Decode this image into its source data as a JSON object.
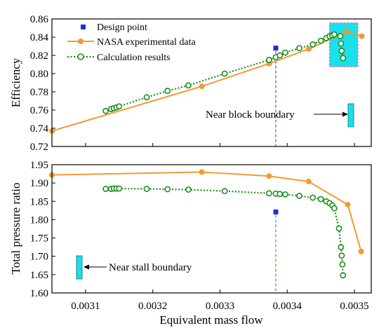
{
  "chart_data": {
    "type": "line",
    "xlabel": "Equivalent mass flow",
    "xlim": [
      0.00305,
      0.003525
    ],
    "x_ticks": [
      "0.0031",
      "0.0032",
      "0.0033",
      "0.0034",
      "0.0035"
    ],
    "x_tick_values": [
      0.0031,
      0.0032,
      0.0033,
      0.0034,
      0.0035
    ],
    "colors": {
      "nasa": "#f39a2f",
      "calc": "#1a8f1a",
      "design": "#1f2fd6",
      "marker_box": "#19e0ea",
      "highlight_border": "#e86ad0"
    },
    "panels": [
      {
        "id": "efficiency",
        "ylabel": "Efficiency",
        "ylim": [
          0.72,
          0.86
        ],
        "y_ticks": [
          "0.72",
          "0.74",
          "0.76",
          "0.78",
          "0.80",
          "0.82",
          "0.84",
          "0.86"
        ],
        "y_tick_values": [
          0.72,
          0.74,
          0.76,
          0.78,
          0.8,
          0.82,
          0.84,
          0.86
        ],
        "legend": {
          "placement": "top-left",
          "entries": [
            "Design point",
            "NASA experimental data",
            "Calculation results"
          ]
        },
        "annotation": "Near block boundary",
        "highlight_region": {
          "x": [
            0.003463,
            0.003505
          ],
          "y": [
            0.8075,
            0.8555
          ]
        },
        "series": [
          {
            "name": "NASA experimental data",
            "x": [
              0.00305,
              0.003273,
              0.003373,
              0.003432,
              0.003488,
              0.003511
            ],
            "y": [
              0.737,
              0.786,
              0.811,
              0.827,
              0.846,
              0.841
            ]
          },
          {
            "name": "Calculation results",
            "x": [
              0.00313,
              0.003138,
              0.003142,
              0.003146,
              0.00315,
              0.003191,
              0.003222,
              0.003253,
              0.003307,
              0.003373,
              0.003383,
              0.003389,
              0.003397,
              0.003418,
              0.003438,
              0.00345,
              0.003458,
              0.003463,
              0.003467,
              0.00347,
              0.003479,
              0.00348,
              0.003481,
              0.003483
            ],
            "y": [
              0.759,
              0.761,
              0.762,
              0.763,
              0.764,
              0.774,
              0.781,
              0.787,
              0.8,
              0.815,
              0.818,
              0.82,
              0.823,
              0.828,
              0.832,
              0.836,
              0.839,
              0.841,
              0.842,
              0.843,
              0.841,
              0.833,
              0.825,
              0.817
            ]
          },
          {
            "name": "Design point",
            "x": [
              0.003383
            ],
            "y": [
              0.828
            ]
          }
        ]
      },
      {
        "id": "pressure",
        "ylabel": "Total pressure ratio",
        "ylim": [
          1.6,
          1.95
        ],
        "y_ticks": [
          "1.60",
          "1.65",
          "1.70",
          "1.75",
          "1.80",
          "1.85",
          "1.90",
          "1.95"
        ],
        "y_tick_values": [
          1.6,
          1.65,
          1.7,
          1.75,
          1.8,
          1.85,
          1.9,
          1.95
        ],
        "annotation": "Near stall boundary",
        "series": [
          {
            "name": "NASA experimental data",
            "x": [
              0.00305,
              0.003273,
              0.003373,
              0.003432,
              0.00349,
              0.00351
            ],
            "y": [
              1.922,
              1.93,
              1.919,
              1.904,
              1.841,
              1.713
            ]
          },
          {
            "name": "Calculation results",
            "x": [
              0.00313,
              0.003138,
              0.003142,
              0.003146,
              0.00315,
              0.003191,
              0.003222,
              0.003253,
              0.003307,
              0.003373,
              0.003383,
              0.003389,
              0.003397,
              0.003418,
              0.003438,
              0.00345,
              0.003458,
              0.003463,
              0.003467,
              0.00347,
              0.003477,
              0.00348,
              0.003481,
              0.003482,
              0.003483
            ],
            "y": [
              1.884,
              1.884,
              1.885,
              1.885,
              1.885,
              1.884,
              1.883,
              1.882,
              1.878,
              1.872,
              1.871,
              1.87,
              1.869,
              1.865,
              1.86,
              1.856,
              1.85,
              1.845,
              1.839,
              1.831,
              1.776,
              1.725,
              1.702,
              1.678,
              1.648
            ]
          },
          {
            "name": "Design point",
            "x": [
              0.003383
            ],
            "y": [
              1.821
            ]
          }
        ]
      }
    ]
  }
}
